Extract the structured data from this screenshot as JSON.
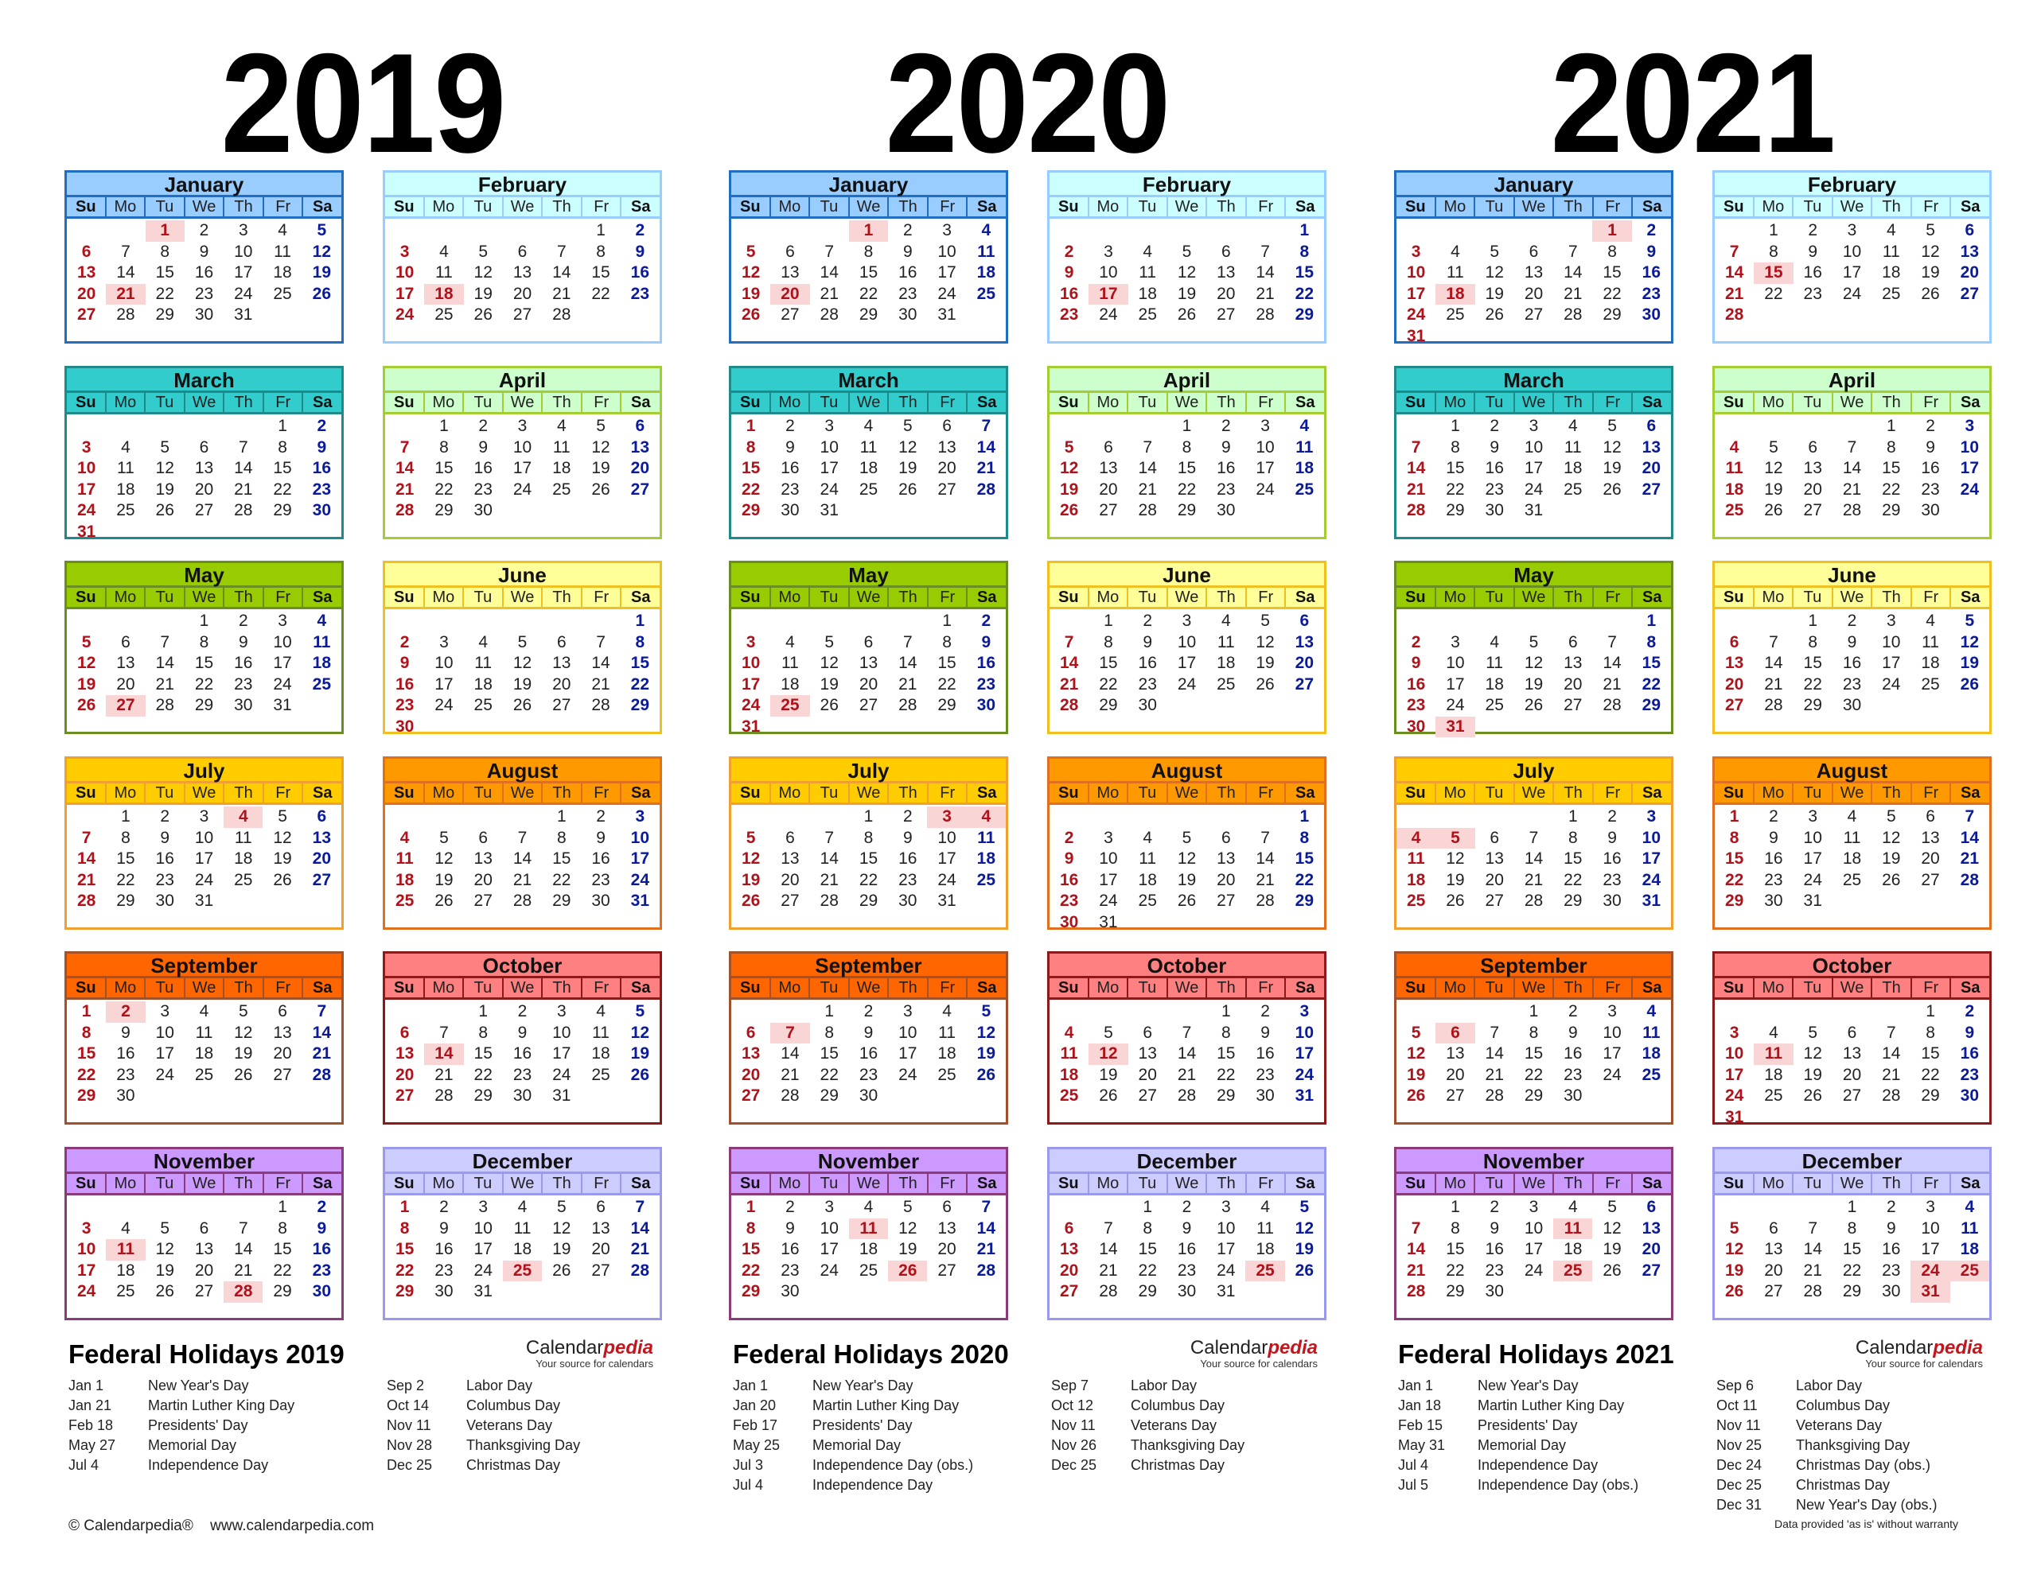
{
  "weekdays": [
    "Su",
    "Mo",
    "Tu",
    "We",
    "Th",
    "Fr",
    "Sa"
  ],
  "month_themes": [
    {
      "name": "January",
      "header": "#99ccff",
      "sub": "#99ccff",
      "border": "#1f6ec1"
    },
    {
      "name": "February",
      "header": "#ccffff",
      "sub": "#ccffff",
      "border": "#99ccff"
    },
    {
      "name": "March",
      "header": "#33cccc",
      "sub": "#33cccc",
      "border": "#1f8a8a"
    },
    {
      "name": "April",
      "header": "#ccffcc",
      "sub": "#ccffcc",
      "border": "#a6cc33"
    },
    {
      "name": "May",
      "header": "#99cc00",
      "sub": "#99cc00",
      "border": "#6b8e23"
    },
    {
      "name": "June",
      "header": "#ffff99",
      "sub": "#ffff99",
      "border": "#f0c020"
    },
    {
      "name": "July",
      "header": "#ffcc00",
      "sub": "#ffcc00",
      "border": "#f0a030"
    },
    {
      "name": "August",
      "header": "#ff9900",
      "sub": "#ff9900",
      "border": "#e07020"
    },
    {
      "name": "September",
      "header": "#ff6600",
      "sub": "#ff6600",
      "border": "#a0522d"
    },
    {
      "name": "October",
      "header": "#ff8080",
      "sub": "#ff8080",
      "border": "#8b1a1a"
    },
    {
      "name": "November",
      "header": "#cc99ff",
      "sub": "#cc99ff",
      "border": "#8b3a7a"
    },
    {
      "name": "December",
      "header": "#ccccff",
      "sub": "#ccccff",
      "border": "#9999ee"
    }
  ],
  "colors": {
    "sunday": "#b0121b",
    "saturday": "#0a1a9a",
    "holiday_bg": "#f9d5d5",
    "brand_accent": "#c4151c"
  },
  "years": [
    {
      "year": "2019",
      "months": [
        {
          "start": 2,
          "days": 31,
          "holidays": [
            1,
            21
          ]
        },
        {
          "start": 5,
          "days": 28,
          "holidays": [
            18
          ]
        },
        {
          "start": 5,
          "days": 31,
          "holidays": []
        },
        {
          "start": 1,
          "days": 30,
          "holidays": []
        },
        {
          "start": 3,
          "days": 31,
          "holidays": [
            27
          ]
        },
        {
          "start": 6,
          "days": 30,
          "holidays": []
        },
        {
          "start": 1,
          "days": 31,
          "holidays": [
            4
          ]
        },
        {
          "start": 4,
          "days": 31,
          "holidays": []
        },
        {
          "start": 0,
          "days": 30,
          "holidays": [
            2
          ]
        },
        {
          "start": 2,
          "days": 31,
          "holidays": [
            14
          ]
        },
        {
          "start": 5,
          "days": 30,
          "holidays": [
            11,
            28
          ]
        },
        {
          "start": 0,
          "days": 31,
          "holidays": [
            25
          ]
        }
      ],
      "holidays_title": "Federal Holidays 2019",
      "holidays_left": [
        {
          "date": "Jan 1",
          "name": "New Year's Day"
        },
        {
          "date": "Jan 21",
          "name": "Martin Luther King Day"
        },
        {
          "date": "Feb 18",
          "name": "Presidents' Day"
        },
        {
          "date": "May 27",
          "name": "Memorial Day"
        },
        {
          "date": "Jul 4",
          "name": "Independence Day"
        }
      ],
      "holidays_right": [
        {
          "date": "Sep 2",
          "name": "Labor Day"
        },
        {
          "date": "Oct 14",
          "name": "Columbus Day"
        },
        {
          "date": "Nov 11",
          "name": "Veterans Day"
        },
        {
          "date": "Nov 28",
          "name": "Thanksgiving Day"
        },
        {
          "date": "Dec 25",
          "name": "Christmas Day"
        }
      ]
    },
    {
      "year": "2020",
      "months": [
        {
          "start": 3,
          "days": 31,
          "holidays": [
            1,
            20
          ]
        },
        {
          "start": 6,
          "days": 29,
          "holidays": [
            17
          ]
        },
        {
          "start": 0,
          "days": 31,
          "holidays": []
        },
        {
          "start": 3,
          "days": 30,
          "holidays": []
        },
        {
          "start": 5,
          "days": 31,
          "holidays": [
            25
          ]
        },
        {
          "start": 1,
          "days": 30,
          "holidays": []
        },
        {
          "start": 3,
          "days": 31,
          "holidays": [
            3,
            4
          ]
        },
        {
          "start": 6,
          "days": 31,
          "holidays": []
        },
        {
          "start": 2,
          "days": 30,
          "holidays": [
            7
          ]
        },
        {
          "start": 4,
          "days": 31,
          "holidays": [
            12
          ]
        },
        {
          "start": 0,
          "days": 30,
          "holidays": [
            11,
            26
          ]
        },
        {
          "start": 2,
          "days": 31,
          "holidays": [
            25
          ]
        }
      ],
      "holidays_title": "Federal Holidays 2020",
      "holidays_left": [
        {
          "date": "Jan 1",
          "name": "New Year's Day"
        },
        {
          "date": "Jan 20",
          "name": "Martin Luther King Day"
        },
        {
          "date": "Feb 17",
          "name": "Presidents' Day"
        },
        {
          "date": "May 25",
          "name": "Memorial Day"
        },
        {
          "date": "Jul 3",
          "name": "Independence Day (obs.)"
        },
        {
          "date": "Jul 4",
          "name": "Independence Day"
        }
      ],
      "holidays_right": [
        {
          "date": "Sep 7",
          "name": "Labor Day"
        },
        {
          "date": "Oct 12",
          "name": "Columbus Day"
        },
        {
          "date": "Nov 11",
          "name": "Veterans Day"
        },
        {
          "date": "Nov 26",
          "name": "Thanksgiving Day"
        },
        {
          "date": "Dec 25",
          "name": "Christmas Day"
        }
      ]
    },
    {
      "year": "2021",
      "months": [
        {
          "start": 5,
          "days": 31,
          "holidays": [
            1,
            18
          ]
        },
        {
          "start": 1,
          "days": 28,
          "holidays": [
            15
          ]
        },
        {
          "start": 1,
          "days": 31,
          "holidays": []
        },
        {
          "start": 4,
          "days": 30,
          "holidays": []
        },
        {
          "start": 6,
          "days": 31,
          "holidays": [
            31
          ]
        },
        {
          "start": 2,
          "days": 30,
          "holidays": []
        },
        {
          "start": 4,
          "days": 31,
          "holidays": [
            4,
            5
          ]
        },
        {
          "start": 0,
          "days": 31,
          "holidays": []
        },
        {
          "start": 3,
          "days": 30,
          "holidays": [
            6
          ]
        },
        {
          "start": 5,
          "days": 31,
          "holidays": [
            11
          ]
        },
        {
          "start": 1,
          "days": 30,
          "holidays": [
            11,
            25
          ]
        },
        {
          "start": 3,
          "days": 31,
          "holidays": [
            24,
            25,
            31
          ]
        }
      ],
      "holidays_title": "Federal Holidays 2021",
      "holidays_left": [
        {
          "date": "Jan 1",
          "name": "New Year's Day"
        },
        {
          "date": "Jan 18",
          "name": "Martin Luther King Day"
        },
        {
          "date": "Feb 15",
          "name": "Presidents' Day"
        },
        {
          "date": "May 31",
          "name": "Memorial Day"
        },
        {
          "date": "Jul 4",
          "name": "Independence Day"
        },
        {
          "date": "Jul 5",
          "name": "Independence Day (obs.)"
        }
      ],
      "holidays_right": [
        {
          "date": "Sep 6",
          "name": "Labor Day"
        },
        {
          "date": "Oct 11",
          "name": "Columbus Day"
        },
        {
          "date": "Nov 11",
          "name": "Veterans Day"
        },
        {
          "date": "Nov 25",
          "name": "Thanksgiving Day"
        },
        {
          "date": "Dec 24",
          "name": "Christmas Day (obs.)"
        },
        {
          "date": "Dec 25",
          "name": "Christmas Day"
        },
        {
          "date": "Dec 31",
          "name": "New Year's Day (obs.)"
        }
      ],
      "disclaimer": "Data provided 'as is' without warranty"
    }
  ],
  "brand": {
    "name_plain": "Calendar",
    "name_accent": "pedia",
    "tagline": "Your source for calendars"
  },
  "footer": {
    "copyright": "© Calendarpedia®",
    "url": "www.calendarpedia.com"
  }
}
